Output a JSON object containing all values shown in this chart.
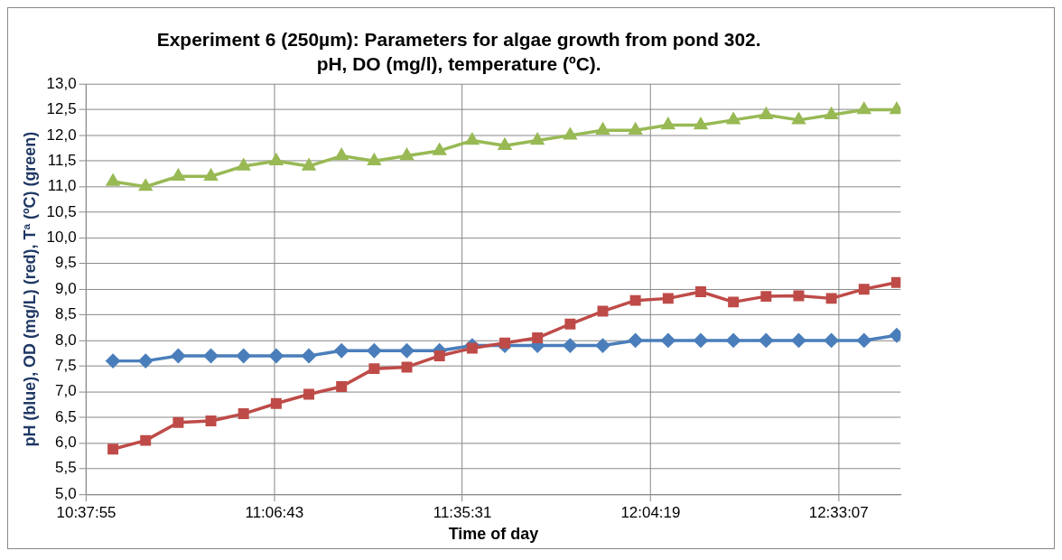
{
  "chart_data": {
    "type": "line",
    "title": "Experiment 6 (250µm): Parameters for algae growth from pond 302.",
    "subtitle": "pH, DO (mg/l), temperature (ºC).",
    "xlabel": "Time of day",
    "ylabel": "pH (blue), OD (mg/L) (red), Tª (ºC) (green)",
    "x": [
      10.7,
      10.7833,
      10.8667,
      10.95,
      11.0333,
      11.1167,
      11.2,
      11.2833,
      11.3667,
      11.45,
      11.5333,
      11.6167,
      11.7,
      11.7833,
      11.8667,
      11.95,
      12.0333,
      12.1167,
      12.2,
      12.2833,
      12.3667,
      12.45,
      12.5333,
      12.6167,
      12.7
    ],
    "xlim": [
      10.63194,
      12.71
    ],
    "xticks": [
      {
        "value": 10.63194,
        "label": "10:37:55"
      },
      {
        "value": 11.11194,
        "label": "11:06:43"
      },
      {
        "value": 11.59194,
        "label": "11:35:31"
      },
      {
        "value": 12.07194,
        "label": "12:04:19"
      },
      {
        "value": 12.55194,
        "label": "12:33:07"
      }
    ],
    "ylim": [
      5,
      13
    ],
    "yticks": [
      {
        "value": 5,
        "label": "5,0"
      },
      {
        "value": 5.5,
        "label": "5,5"
      },
      {
        "value": 6,
        "label": "6,0"
      },
      {
        "value": 6.5,
        "label": "6,5"
      },
      {
        "value": 7,
        "label": "7,0"
      },
      {
        "value": 7.5,
        "label": "7,5"
      },
      {
        "value": 8,
        "label": "8,0"
      },
      {
        "value": 8.5,
        "label": "8,5"
      },
      {
        "value": 9,
        "label": "9,0"
      },
      {
        "value": 9.5,
        "label": "9,5"
      },
      {
        "value": 10,
        "label": "10,0"
      },
      {
        "value": 10.5,
        "label": "10,5"
      },
      {
        "value": 11,
        "label": "11,0"
      },
      {
        "value": 11.5,
        "label": "11,5"
      },
      {
        "value": 12,
        "label": "12,0"
      },
      {
        "value": 12.5,
        "label": "12,5"
      },
      {
        "value": 13,
        "label": "13,0"
      }
    ],
    "grid": true,
    "legend": false,
    "series": [
      {
        "color": "#4a7ebb",
        "marker": "diamond",
        "values": [
          7.6,
          7.6,
          7.7,
          7.7,
          7.7,
          7.7,
          7.7,
          7.8,
          7.8,
          7.8,
          7.8,
          7.9,
          7.9,
          7.9,
          7.9,
          7.9,
          8.0,
          8.0,
          8.0,
          8.0,
          8.0,
          8.0,
          8.0,
          8.0,
          8.1
        ]
      },
      {
        "color": "#be4b48",
        "marker": "square",
        "values": [
          5.88,
          6.05,
          6.4,
          6.43,
          6.57,
          6.77,
          6.95,
          7.1,
          7.45,
          7.48,
          7.7,
          7.85,
          7.95,
          8.05,
          8.32,
          8.57,
          8.78,
          8.82,
          8.95,
          8.75,
          8.86,
          8.87,
          8.82,
          9.0,
          9.13
        ]
      },
      {
        "color": "#98b954",
        "marker": "triangle",
        "values": [
          11.1,
          11.0,
          11.2,
          11.2,
          11.4,
          11.5,
          11.4,
          11.6,
          11.5,
          11.6,
          11.7,
          11.9,
          11.8,
          11.9,
          12.0,
          12.1,
          12.1,
          12.2,
          12.2,
          12.3,
          12.4,
          12.3,
          12.4,
          12.5,
          12.5
        ]
      }
    ]
  }
}
